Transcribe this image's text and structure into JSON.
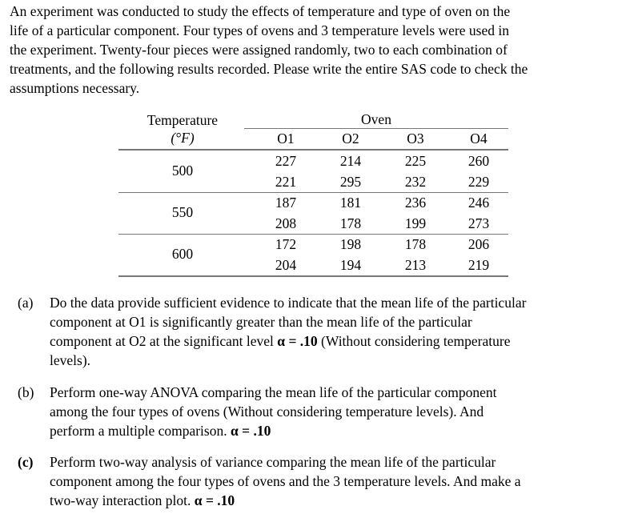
{
  "intro": [
    "An experiment was conducted to study the effects of temperature and type of oven on the",
    "life of a particular component. Four types of ovens and 3 temperature levels were used in",
    "the experiment. Twenty-four pieces were assigned randomly, two to each combination of",
    "treatments, and the following results recorded. Please write the entire SAS code to check the",
    "assumptions necessary."
  ],
  "table": {
    "temp_header": "Temperature",
    "temp_unit": "(°F)",
    "oven_header": "Oven",
    "columns": [
      "O1",
      "O2",
      "O3",
      "O4"
    ],
    "groups": [
      {
        "temp": "500",
        "rows": [
          [
            "227",
            "214",
            "225",
            "260"
          ],
          [
            "221",
            "295",
            "232",
            "229"
          ]
        ]
      },
      {
        "temp": "550",
        "rows": [
          [
            "187",
            "181",
            "236",
            "246"
          ],
          [
            "208",
            "178",
            "199",
            "273"
          ]
        ]
      },
      {
        "temp": "600",
        "rows": [
          [
            "172",
            "198",
            "178",
            "206"
          ],
          [
            "204",
            "194",
            "213",
            "219"
          ]
        ]
      }
    ]
  },
  "questions": {
    "a": {
      "label": "(a)",
      "l1": "Do the data provide sufficient evidence to indicate that the mean life of the particular",
      "l2": "component at O1 is significantly greater than the mean life of the particular",
      "l3a": "component at O2 at the significant level ",
      "l3b": "α = .10",
      "l3c": " (Without considering temperature",
      "l4": "levels)."
    },
    "b": {
      "label": "(b)",
      "l1": "Perform one-way ANOVA comparing the mean life of the particular component",
      "l2": "among the four types of ovens (Without considering temperature levels).  And",
      "l3a": "perform a multiple comparison. ",
      "l3b": "α = .10"
    },
    "c": {
      "label": "(c)",
      "l1": "Perform two-way analysis of variance comparing the mean life of the particular",
      "l2": "component among the four types of ovens and the 3 temperature levels. And make a",
      "l3a": "two-way interaction plot. ",
      "l3b": "α = .10"
    }
  }
}
